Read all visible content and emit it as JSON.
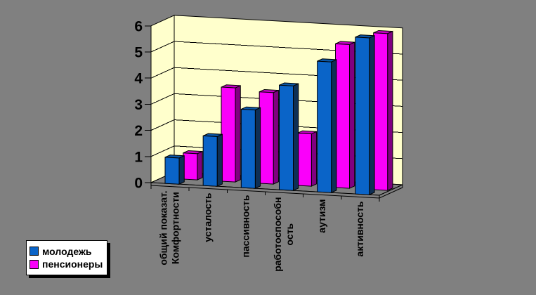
{
  "window": {
    "background_color": "#808080"
  },
  "chart_data": {
    "type": "bar",
    "projection": "3d",
    "title": "",
    "xlabel": "",
    "ylabel": "",
    "categories": [
      "общий показат. Комфортности",
      "усталость",
      "пассивность",
      "работоспособность",
      "аутизм",
      "активность"
    ],
    "category_label_lines": [
      [
        "общий показат.",
        "Комфортности"
      ],
      [
        "усталость"
      ],
      [
        "пассивность"
      ],
      [
        "работоспособн",
        "ость"
      ],
      [
        "аутизм"
      ],
      [
        "активность"
      ]
    ],
    "series": [
      {
        "name": "молодежь",
        "color": "#0A64C8",
        "color_top": "#0B56A4",
        "color_side": "#0E2F55",
        "values": [
          1.0,
          1.9,
          3.0,
          4.0,
          5.0,
          6.0
        ]
      },
      {
        "name": "пенсионеры",
        "color": "#FA00FA",
        "color_top": "#C400C4",
        "color_side": "#800080",
        "values": [
          1.0,
          3.6,
          3.5,
          2.0,
          5.5,
          6.0
        ]
      }
    ],
    "ylim": [
      0,
      6
    ],
    "yticks": [
      0,
      1,
      2,
      3,
      4,
      5,
      6
    ],
    "grid": true,
    "wall_color": "#FFFFCC",
    "floor_color": "#808080",
    "outline_color": "#000000",
    "legend_position": "bottom-left"
  }
}
